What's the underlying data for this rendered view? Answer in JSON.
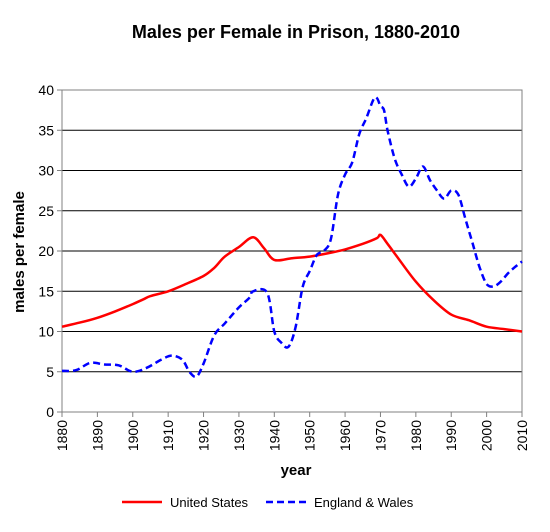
{
  "chart_data": {
    "type": "line",
    "title": "Males per Female in Prison, 1880-2010",
    "xlabel": "year",
    "ylabel": "males per female",
    "xlim": [
      1880,
      2010
    ],
    "ylim": [
      0,
      40
    ],
    "x_ticks": [
      1880,
      1890,
      1900,
      1910,
      1920,
      1930,
      1940,
      1950,
      1960,
      1970,
      1980,
      1990,
      2000,
      2010
    ],
    "y_ticks": [
      0,
      5,
      10,
      15,
      20,
      25,
      30,
      35,
      40
    ],
    "grid": "horizontal",
    "legend_position": "bottom",
    "series": [
      {
        "name": "United States",
        "color": "#ff0000",
        "line_style": "solid",
        "x": [
          1880,
          1885,
          1890,
          1895,
          1900,
          1903,
          1905,
          1910,
          1915,
          1920,
          1923,
          1926,
          1930,
          1934,
          1937,
          1940,
          1945,
          1950,
          1955,
          1960,
          1965,
          1969,
          1970,
          1972,
          1975,
          1980,
          1985,
          1990,
          1995,
          2000,
          2005,
          2010
        ],
        "y": [
          10.6,
          11.1,
          11.7,
          12.5,
          13.4,
          14.0,
          14.4,
          15.0,
          15.9,
          16.9,
          17.9,
          19.3,
          20.5,
          21.7,
          20.4,
          18.9,
          19.1,
          19.3,
          19.7,
          20.2,
          20.9,
          21.6,
          22.0,
          20.9,
          19.1,
          16.2,
          13.9,
          12.1,
          11.4,
          10.6,
          10.3,
          10.0
        ]
      },
      {
        "name": "England & Wales",
        "color": "#0000ff",
        "line_style": "dashed",
        "x": [
          1880,
          1884,
          1888,
          1892,
          1896,
          1900,
          1904,
          1908,
          1911,
          1914,
          1916,
          1918,
          1920,
          1923,
          1926,
          1930,
          1933,
          1934,
          1938,
          1940,
          1942,
          1944,
          1946,
          1948,
          1950,
          1952,
          1954,
          1956,
          1958,
          1960,
          1962,
          1964,
          1966,
          1968,
          1969,
          1970,
          1971,
          1972,
          1974,
          1976,
          1978,
          1980,
          1982,
          1984,
          1986,
          1988,
          1990,
          1992,
          1994,
          1996,
          1998,
          2000,
          2002,
          2004,
          2006,
          2008,
          2010
        ],
        "y": [
          5.1,
          5.2,
          6.1,
          5.9,
          5.8,
          5.0,
          5.5,
          6.5,
          7.0,
          6.5,
          5.0,
          4.4,
          6.0,
          9.5,
          11.0,
          13.0,
          14.2,
          15.0,
          14.8,
          10.0,
          8.6,
          8.1,
          10.5,
          15.5,
          17.5,
          19.5,
          20.0,
          21.5,
          27.0,
          29.5,
          31.0,
          34.5,
          36.5,
          38.8,
          39.0,
          38.0,
          37.5,
          35.0,
          31.5,
          29.5,
          28.0,
          29.0,
          30.5,
          28.8,
          27.5,
          26.5,
          27.5,
          27.0,
          24.0,
          21.0,
          18.0,
          15.9,
          15.6,
          16.2,
          17.2,
          18.0,
          18.7
        ]
      }
    ]
  }
}
